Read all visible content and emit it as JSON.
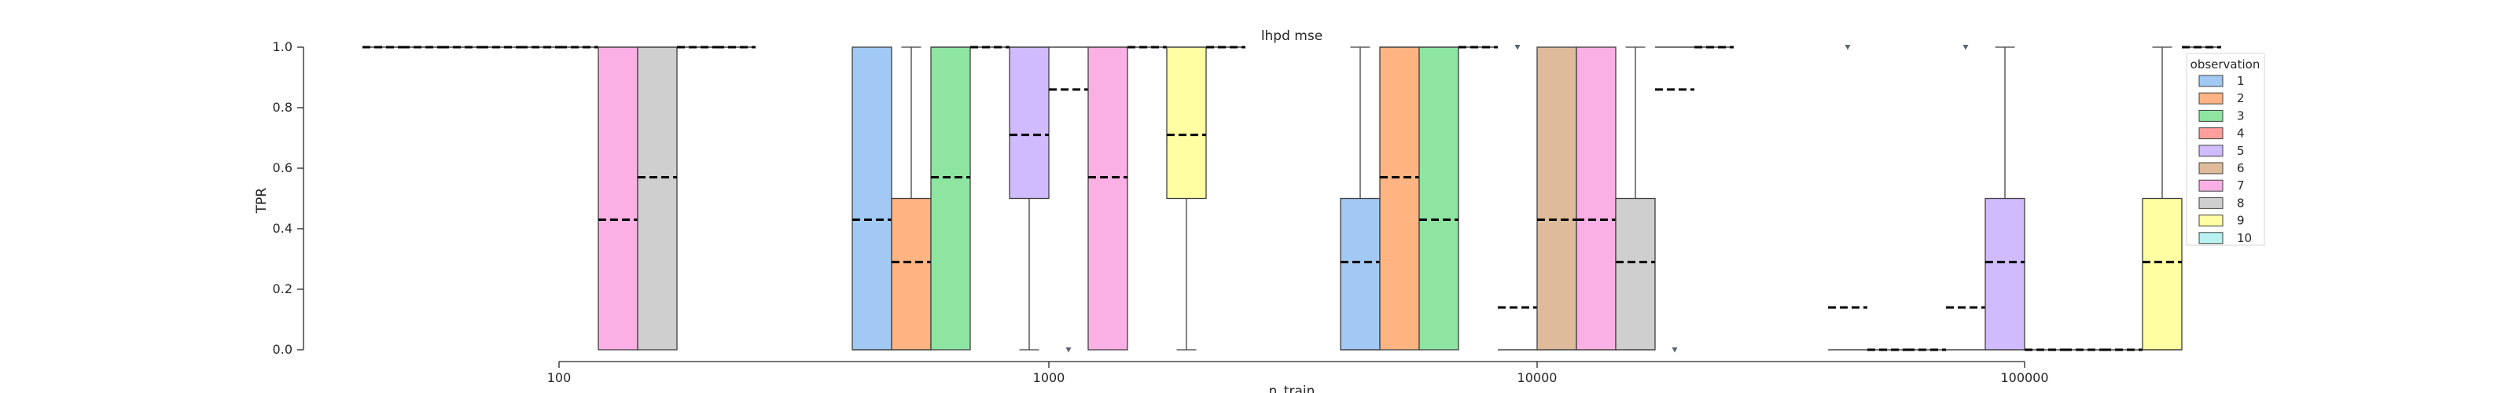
{
  "chart_data": {
    "type": "box",
    "title": "lhpd mse",
    "xlabel": "n_train",
    "ylabel": "TPR",
    "ylim": [
      0.0,
      1.0
    ],
    "yticks": [
      "0.0",
      "0.2",
      "0.4",
      "0.6",
      "0.8",
      "1.0"
    ],
    "categories": [
      "100",
      "1000",
      "10000",
      "100000"
    ],
    "legend": {
      "title": "observation",
      "placement": "upper-right",
      "entries": [
        "1",
        "2",
        "3",
        "4",
        "5",
        "6",
        "7",
        "8",
        "9",
        "10"
      ]
    },
    "colors": [
      "#a1c9f4",
      "#ffb482",
      "#8de5a1",
      "#ff9f9b",
      "#d0bbff",
      "#debb9b",
      "#fab0e4",
      "#cfcfcf",
      "#fffea3",
      "#b9f2f0"
    ],
    "series_boxes": [
      [
        {
          "obs": "1",
          "q1": 1.0,
          "median": 1.0,
          "q3": 1.0,
          "whislo": 1.0,
          "whishi": 1.0,
          "mean": 1.0
        },
        {
          "obs": "2",
          "q1": 1.0,
          "median": 1.0,
          "q3": 1.0,
          "whislo": 1.0,
          "whishi": 1.0,
          "mean": 1.0
        },
        {
          "obs": "3",
          "q1": 1.0,
          "median": 1.0,
          "q3": 1.0,
          "whislo": 1.0,
          "whishi": 1.0,
          "mean": 1.0
        },
        {
          "obs": "4",
          "q1": 1.0,
          "median": 1.0,
          "q3": 1.0,
          "whislo": 1.0,
          "whishi": 1.0,
          "mean": 1.0
        },
        {
          "obs": "5",
          "q1": 1.0,
          "median": 1.0,
          "q3": 1.0,
          "whislo": 1.0,
          "whishi": 1.0,
          "mean": 1.0
        },
        {
          "obs": "6",
          "q1": 1.0,
          "median": 1.0,
          "q3": 1.0,
          "whislo": 1.0,
          "whishi": 1.0,
          "mean": 1.0
        },
        {
          "obs": "7",
          "q1": 0.0,
          "median": 1.0,
          "q3": 1.0,
          "whislo": 0.0,
          "whishi": 1.0,
          "mean": 0.43
        },
        {
          "obs": "8",
          "q1": 0.0,
          "median": 1.0,
          "q3": 1.0,
          "whislo": 0.0,
          "whishi": 1.0,
          "mean": 0.57
        },
        {
          "obs": "9",
          "q1": 1.0,
          "median": 1.0,
          "q3": 1.0,
          "whislo": 1.0,
          "whishi": 1.0,
          "mean": 1.0
        },
        {
          "obs": "10",
          "q1": 1.0,
          "median": 1.0,
          "q3": 1.0,
          "whislo": 1.0,
          "whishi": 1.0,
          "mean": 1.0
        }
      ],
      [
        {
          "obs": "1",
          "q1": 0.0,
          "median": 0.0,
          "q3": 1.0,
          "whislo": 0.0,
          "whishi": 1.0,
          "mean": 0.43
        },
        {
          "obs": "2",
          "q1": 0.0,
          "median": 0.0,
          "q3": 0.5,
          "whislo": 0.0,
          "whishi": 1.0,
          "mean": 0.29
        },
        {
          "obs": "3",
          "q1": 0.0,
          "median": 1.0,
          "q3": 1.0,
          "whislo": 0.0,
          "whishi": 1.0,
          "mean": 0.57
        },
        {
          "obs": "4",
          "q1": 1.0,
          "median": 1.0,
          "q3": 1.0,
          "whislo": 1.0,
          "whishi": 1.0,
          "mean": 1.0
        },
        {
          "obs": "5",
          "q1": 0.5,
          "median": 1.0,
          "q3": 1.0,
          "whislo": 0.0,
          "whishi": 1.0,
          "mean": 0.71
        },
        {
          "obs": "6",
          "q1": 1.0,
          "median": 1.0,
          "q3": 1.0,
          "whislo": 1.0,
          "whishi": 1.0,
          "mean": 0.86,
          "fliers": [
            0.0
          ]
        },
        {
          "obs": "7",
          "q1": 0.0,
          "median": 1.0,
          "q3": 1.0,
          "whislo": 0.0,
          "whishi": 1.0,
          "mean": 0.57
        },
        {
          "obs": "8",
          "q1": 1.0,
          "median": 1.0,
          "q3": 1.0,
          "whislo": 1.0,
          "whishi": 1.0,
          "mean": 1.0
        },
        {
          "obs": "9",
          "q1": 0.5,
          "median": 1.0,
          "q3": 1.0,
          "whislo": 0.0,
          "whishi": 1.0,
          "mean": 0.71
        },
        {
          "obs": "10",
          "q1": 1.0,
          "median": 1.0,
          "q3": 1.0,
          "whislo": 1.0,
          "whishi": 1.0,
          "mean": 1.0
        }
      ],
      [
        {
          "obs": "1",
          "q1": 0.0,
          "median": 0.0,
          "q3": 0.5,
          "whislo": 0.0,
          "whishi": 1.0,
          "mean": 0.29
        },
        {
          "obs": "2",
          "q1": 0.0,
          "median": 1.0,
          "q3": 1.0,
          "whislo": 0.0,
          "whishi": 1.0,
          "mean": 0.57
        },
        {
          "obs": "3",
          "q1": 0.0,
          "median": 1.0,
          "q3": 1.0,
          "whislo": 0.0,
          "whishi": 1.0,
          "mean": 0.43
        },
        {
          "obs": "4",
          "q1": 1.0,
          "median": 1.0,
          "q3": 1.0,
          "whislo": 1.0,
          "whishi": 1.0,
          "mean": 1.0
        },
        {
          "obs": "5",
          "q1": 0.0,
          "median": 0.0,
          "q3": 0.0,
          "whislo": 0.0,
          "whishi": 0.0,
          "mean": 0.14,
          "fliers": [
            1.0
          ]
        },
        {
          "obs": "6",
          "q1": 0.0,
          "median": 0.0,
          "q3": 1.0,
          "whislo": 0.0,
          "whishi": 1.0,
          "mean": 0.43
        },
        {
          "obs": "7",
          "q1": 0.0,
          "median": 0.0,
          "q3": 1.0,
          "whislo": 0.0,
          "whishi": 1.0,
          "mean": 0.43
        },
        {
          "obs": "8",
          "q1": 0.0,
          "median": 0.0,
          "q3": 0.5,
          "whislo": 0.0,
          "whishi": 1.0,
          "mean": 0.29
        },
        {
          "obs": "9",
          "q1": 1.0,
          "median": 1.0,
          "q3": 1.0,
          "whislo": 1.0,
          "whishi": 1.0,
          "mean": 0.86,
          "fliers": [
            0.0
          ]
        },
        {
          "obs": "10",
          "q1": 1.0,
          "median": 1.0,
          "q3": 1.0,
          "whislo": 1.0,
          "whishi": 1.0,
          "mean": 1.0
        }
      ],
      [
        {
          "obs": "1",
          "q1": 0.0,
          "median": 0.0,
          "q3": 0.0,
          "whislo": 0.0,
          "whishi": 0.0,
          "mean": 0.14,
          "fliers": [
            1.0
          ]
        },
        {
          "obs": "2",
          "q1": 0.0,
          "median": 0.0,
          "q3": 0.0,
          "whislo": 0.0,
          "whishi": 0.0,
          "mean": 0.0
        },
        {
          "obs": "3",
          "q1": 0.0,
          "median": 0.0,
          "q3": 0.0,
          "whislo": 0.0,
          "whishi": 0.0,
          "mean": 0.0
        },
        {
          "obs": "4",
          "q1": 0.0,
          "median": 0.0,
          "q3": 0.0,
          "whislo": 0.0,
          "whishi": 0.0,
          "mean": 0.14,
          "fliers": [
            1.0
          ]
        },
        {
          "obs": "5",
          "q1": 0.0,
          "median": 0.0,
          "q3": 0.5,
          "whislo": 0.0,
          "whishi": 1.0,
          "mean": 0.29
        },
        {
          "obs": "6",
          "q1": 0.0,
          "median": 0.0,
          "q3": 0.0,
          "whislo": 0.0,
          "whishi": 0.0,
          "mean": 0.0
        },
        {
          "obs": "7",
          "q1": 0.0,
          "median": 0.0,
          "q3": 0.0,
          "whislo": 0.0,
          "whishi": 0.0,
          "mean": 0.0
        },
        {
          "obs": "8",
          "q1": 0.0,
          "median": 0.0,
          "q3": 0.0,
          "whislo": 0.0,
          "whishi": 0.0,
          "mean": 0.0
        },
        {
          "obs": "9",
          "q1": 0.0,
          "median": 0.0,
          "q3": 0.5,
          "whislo": 0.0,
          "whishi": 1.0,
          "mean": 0.29
        },
        {
          "obs": "10",
          "q1": 1.0,
          "median": 1.0,
          "q3": 1.0,
          "whislo": 1.0,
          "whishi": 1.0,
          "mean": 1.0
        }
      ]
    ]
  }
}
